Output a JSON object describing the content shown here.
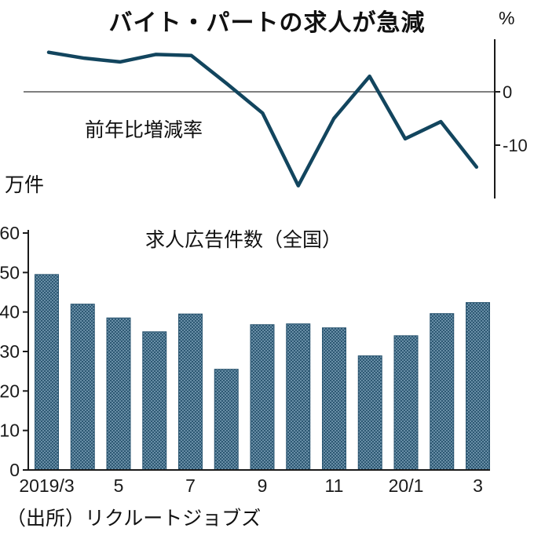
{
  "title": "バイト・パートの求人が急減",
  "labels": {
    "line_unit": "%",
    "line_annotation": "前年比増減率",
    "bar_unit": "万件",
    "bar_title": "求人広告件数（全国）",
    "source": "（出所）リクルートジョブズ"
  },
  "colors": {
    "line": "#12455e",
    "bar_base": "#6a90a8",
    "bar_dot": "#2a5570",
    "axis": "#1a1a1a",
    "zero_line": "#555555"
  },
  "chart_data": [
    {
      "type": "line",
      "title": "前年比増減率",
      "unit": "%",
      "x": [
        "2019/3",
        "4",
        "5",
        "6",
        "7",
        "8",
        "9",
        "10",
        "11",
        "12",
        "20/1",
        "2",
        "3"
      ],
      "values": [
        7.4,
        6.3,
        5.6,
        7.0,
        6.8,
        1.5,
        -4.0,
        -17.6,
        -5.0,
        2.9,
        -8.8,
        -5.6,
        -14.1
      ],
      "ylim": [
        -20,
        9
      ],
      "yticks": [
        [
          0,
          "0"
        ],
        [
          -10,
          "-10"
        ]
      ],
      "grid": false,
      "legend_position": "none",
      "axis_side": "right"
    },
    {
      "type": "bar",
      "title": "求人広告件数（全国）",
      "unit": "万件",
      "categories": [
        "2019/3",
        "4",
        "5",
        "6",
        "7",
        "8",
        "9",
        "10",
        "11",
        "12",
        "20/1",
        "2",
        "3"
      ],
      "values": [
        49.5,
        42.0,
        38.5,
        35.0,
        39.5,
        25.5,
        36.8,
        37.0,
        36.0,
        28.9,
        34.0,
        39.6,
        42.4
      ],
      "ylim": [
        0,
        60
      ],
      "yticks": [
        0,
        10,
        20,
        30,
        40,
        50,
        60
      ],
      "xticks": [
        [
          0,
          "2019/3"
        ],
        [
          2,
          "5"
        ],
        [
          4,
          "7"
        ],
        [
          6,
          "9"
        ],
        [
          8,
          "11"
        ],
        [
          10,
          "20/1"
        ],
        [
          12,
          "3"
        ]
      ],
      "grid": false,
      "legend_position": "none"
    }
  ]
}
